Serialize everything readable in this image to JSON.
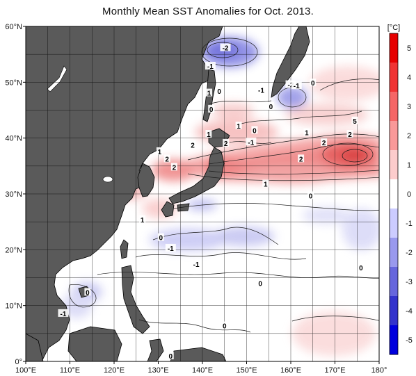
{
  "title": "Monthly Mean SST Anomalies for Oct. 2013.",
  "map": {
    "lon_labels": [
      "100°E",
      "110°E",
      "120°E",
      "130°E",
      "140°E",
      "150°E",
      "160°E",
      "170°E",
      "180°"
    ],
    "lat_labels": [
      "60°N",
      "50°N",
      "40°N",
      "30°N",
      "20°N",
      "10°N",
      "0°"
    ],
    "lon_range": [
      100,
      180
    ],
    "lat_range": [
      0,
      60
    ],
    "grid_step_deg": 5
  },
  "colorbar": {
    "unit": "[°C]",
    "ticks": [
      "5",
      "4",
      "3",
      "2",
      "1",
      "0",
      "-1",
      "-2",
      "-3",
      "-4",
      "-5"
    ],
    "colors": [
      "#e60000",
      "#f03333",
      "#f56666",
      "#f99999",
      "#fccccc",
      "#ffffff",
      "#ccccff",
      "#9999ee",
      "#6666dd",
      "#3333cc",
      "#0000dd"
    ]
  },
  "contour_labels": [
    {
      "text": "-2",
      "lon": 145.2,
      "lat": 56.2
    },
    {
      "text": "-1",
      "lon": 141.8,
      "lat": 52.9
    },
    {
      "text": "-2",
      "lon": 160.0,
      "lat": 49.6
    },
    {
      "text": "-1",
      "lon": 161.3,
      "lat": 49.4
    },
    {
      "text": "0",
      "lon": 165.0,
      "lat": 49.9
    },
    {
      "text": "-1",
      "lon": 153.3,
      "lat": 48.6
    },
    {
      "text": "1",
      "lon": 141.5,
      "lat": 48.1
    },
    {
      "text": "0",
      "lon": 143.8,
      "lat": 48.4
    },
    {
      "text": "0",
      "lon": 155.5,
      "lat": 45.7
    },
    {
      "text": "0",
      "lon": 142.0,
      "lat": 45.2
    },
    {
      "text": "1",
      "lon": 148.2,
      "lat": 42.2
    },
    {
      "text": "0",
      "lon": 151.8,
      "lat": 41.4
    },
    {
      "text": "1",
      "lon": 163.6,
      "lat": 41.0
    },
    {
      "text": "2",
      "lon": 173.4,
      "lat": 40.7
    },
    {
      "text": "5",
      "lon": 174.5,
      "lat": 43.1
    },
    {
      "text": "2",
      "lon": 167.5,
      "lat": 39.2
    },
    {
      "text": "1",
      "lon": 141.4,
      "lat": 40.7
    },
    {
      "text": "2",
      "lon": 145.3,
      "lat": 39.1
    },
    {
      "text": "-1",
      "lon": 151.0,
      "lat": 39.3
    },
    {
      "text": "2",
      "lon": 162.3,
      "lat": 36.3
    },
    {
      "text": "1",
      "lon": 130.3,
      "lat": 37.6
    },
    {
      "text": "2",
      "lon": 137.8,
      "lat": 38.8
    },
    {
      "text": "2",
      "lon": 132.0,
      "lat": 36.3
    },
    {
      "text": "2",
      "lon": 133.6,
      "lat": 34.8
    },
    {
      "text": "1",
      "lon": 154.3,
      "lat": 31.8
    },
    {
      "text": "0",
      "lon": 164.5,
      "lat": 29.7
    },
    {
      "text": "1",
      "lon": 126.4,
      "lat": 25.4
    },
    {
      "text": "0",
      "lon": 130.6,
      "lat": 22.2
    },
    {
      "text": "-1",
      "lon": 132.8,
      "lat": 20.3
    },
    {
      "text": "-1",
      "lon": 138.6,
      "lat": 17.4
    },
    {
      "text": "0",
      "lon": 175.9,
      "lat": 16.8
    },
    {
      "text": "0",
      "lon": 153.1,
      "lat": 14.0
    },
    {
      "text": "0",
      "lon": 114.0,
      "lat": 12.4
    },
    {
      "text": "-1",
      "lon": 108.5,
      "lat": 8.6
    },
    {
      "text": "0",
      "lon": 145.0,
      "lat": 6.4
    },
    {
      "text": "0",
      "lon": 132.8,
      "lat": 1.0
    }
  ]
}
